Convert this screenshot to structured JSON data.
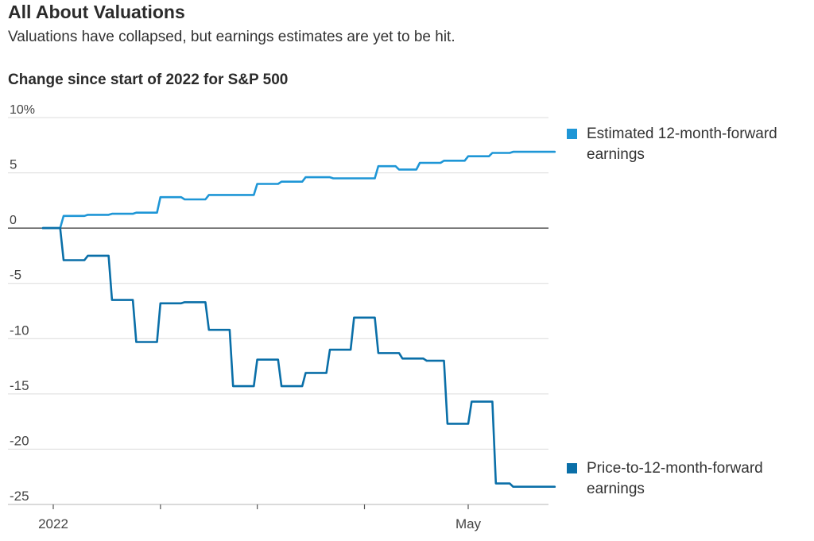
{
  "title": "All About Valuations",
  "subtitle": "Valuations have collapsed, but earnings estimates are yet to be hit.",
  "chart_data": {
    "type": "line",
    "title": "Change since start of 2022 for S&P 500",
    "ylim": [
      -25,
      10
    ],
    "yticks": [
      10,
      5,
      0,
      -5,
      -10,
      -15,
      -20,
      -25
    ],
    "ytick_labels": [
      "10%",
      "5",
      "0",
      "-5",
      "-10",
      "-15",
      "-20",
      "-25"
    ],
    "xlim": [
      0,
      153
    ],
    "xticks": [
      0,
      31,
      59,
      90,
      120
    ],
    "xtick_labels": [
      "2022",
      "",
      "",
      "",
      "May"
    ],
    "grid": true,
    "legend_position": "right",
    "series": [
      {
        "name": "Estimated 12-month-forward earnings",
        "color": "#1e96d6",
        "x": [
          -3,
          2,
          3,
          9,
          10,
          16,
          17,
          23,
          24,
          30,
          31,
          37,
          38,
          44,
          45,
          58,
          59,
          65,
          66,
          72,
          73,
          80,
          81,
          93,
          94,
          99,
          100,
          105,
          106,
          112,
          113,
          119,
          120,
          126,
          127,
          132,
          133,
          139,
          140,
          145
        ],
        "y": [
          0,
          0,
          1.1,
          1.1,
          1.2,
          1.2,
          1.3,
          1.3,
          1.4,
          1.4,
          2.8,
          2.8,
          2.6,
          2.6,
          3.0,
          3.0,
          4.0,
          4.0,
          4.2,
          4.2,
          4.6,
          4.6,
          4.5,
          4.5,
          5.6,
          5.6,
          5.3,
          5.3,
          5.9,
          5.9,
          6.1,
          6.1,
          6.5,
          6.5,
          6.8,
          6.8,
          6.9,
          6.9,
          6.9,
          6.9
        ]
      },
      {
        "name": "Price-to-12-month-forward earnings",
        "color": "#0a6fa8",
        "x": [
          -3,
          2,
          3,
          9,
          10,
          16,
          17,
          23,
          24,
          30,
          31,
          37,
          38,
          44,
          45,
          51,
          52,
          58,
          59,
          65,
          66,
          72,
          73,
          79,
          80,
          86,
          87,
          93,
          94,
          100,
          101,
          107,
          108,
          113,
          114,
          120,
          121,
          127,
          128,
          132,
          133,
          139,
          140,
          145
        ],
        "y": [
          0,
          0,
          -2.9,
          -2.9,
          -2.5,
          -2.5,
          -6.5,
          -6.5,
          -10.3,
          -10.3,
          -6.8,
          -6.8,
          -6.7,
          -6.7,
          -9.2,
          -9.2,
          -14.3,
          -14.3,
          -11.9,
          -11.9,
          -14.3,
          -14.3,
          -13.1,
          -13.1,
          -11.0,
          -11.0,
          -8.1,
          -8.1,
          -11.3,
          -11.3,
          -11.8,
          -11.8,
          -12.0,
          -12.0,
          -17.7,
          -17.7,
          -15.7,
          -15.7,
          -23.1,
          -23.1,
          -23.4,
          -23.4,
          -23.4,
          -23.4
        ]
      }
    ]
  }
}
